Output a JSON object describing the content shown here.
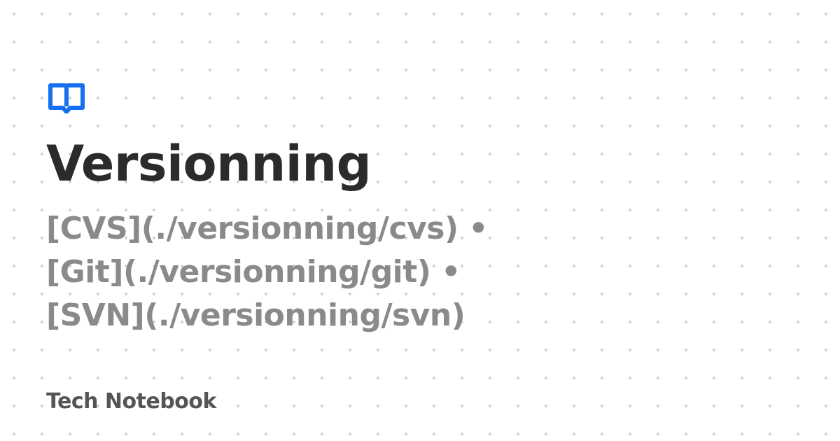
{
  "logo": {
    "icon": "open-book-icon",
    "color": "#1570ef"
  },
  "title": "Versionning",
  "subtitle_lines": [
    "[CVS](./versionning/cvs) •",
    "[Git](./versionning/git) •",
    "[SVN](./versionning/svn)"
  ],
  "brand": "Tech Notebook",
  "colors": {
    "title": "#2b2b2b",
    "subtitle": "#8a8a8a",
    "brand": "#555555",
    "dots": "#c9c9c9",
    "background": "#ffffff"
  }
}
